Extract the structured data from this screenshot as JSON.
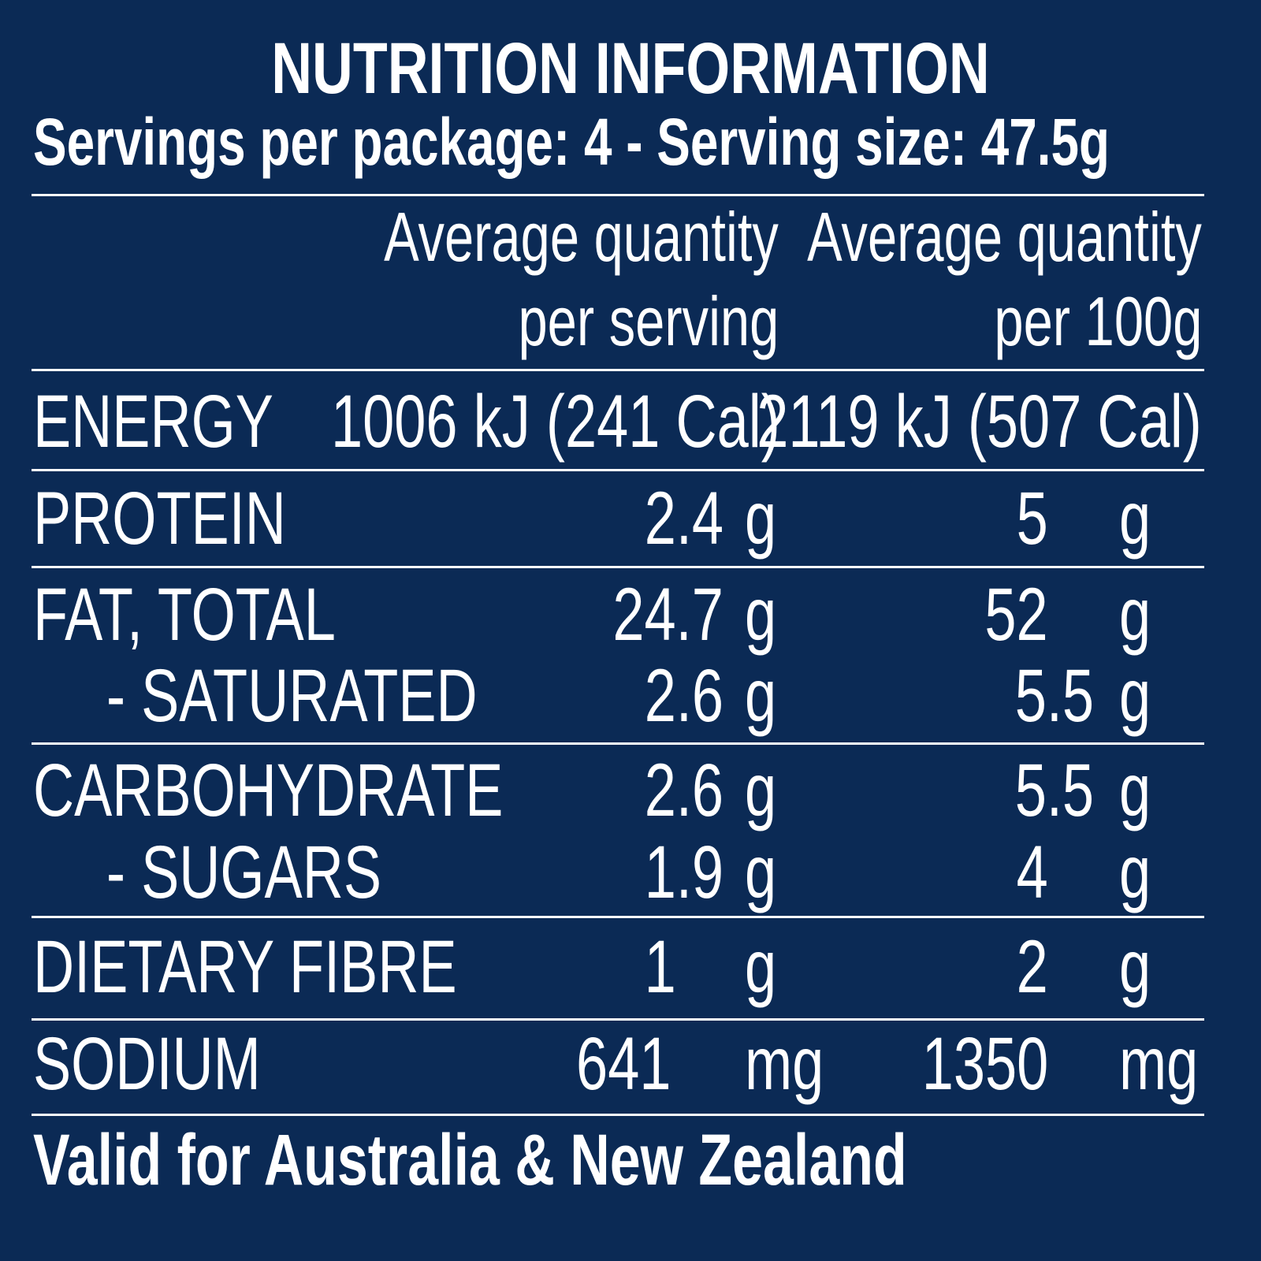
{
  "title": "NUTRITION INFORMATION",
  "subtitle": "Servings per package: 4 - Serving size: 47.5g",
  "columns": {
    "per_serving_line1": "Average quantity",
    "per_serving_line2": "per serving",
    "per_100g_line1": "Average quantity",
    "per_100g_line2": "per 100g"
  },
  "rows": {
    "energy": {
      "label": "ENERGY",
      "serving": "1006 kJ (241 Cal)",
      "per100": "2119 kJ (507 Cal)"
    },
    "protein": {
      "label": "PROTEIN",
      "serving": "2.4",
      "serving_unit": "g",
      "per100": "5",
      "per100_unit": "g"
    },
    "fat": {
      "label": "FAT, TOTAL",
      "serving": "24.7",
      "serving_unit": "g",
      "per100": "52",
      "per100_unit": "g"
    },
    "saturated": {
      "label": "- SATURATED",
      "serving": "2.6",
      "serving_unit": "g",
      "per100": "5.5",
      "per100_unit": "g"
    },
    "carbohydrate": {
      "label": "CARBOHYDRATE",
      "serving": "2.6",
      "serving_unit": "g",
      "per100": "5.5",
      "per100_unit": "g"
    },
    "sugars": {
      "label": "- SUGARS",
      "serving": "1.9",
      "serving_unit": "g",
      "per100": "4",
      "per100_unit": "g"
    },
    "fibre": {
      "label": "DIETARY FIBRE",
      "serving": "1",
      "serving_unit": "g",
      "per100": "2",
      "per100_unit": "g"
    },
    "sodium": {
      "label": "SODIUM",
      "serving": "641",
      "serving_unit": "mg",
      "per100": "1350",
      "per100_unit": "mg"
    }
  },
  "footer": "Valid for Australia & New Zealand",
  "colors": {
    "background": "#0b2a55",
    "text": "#ffffff"
  }
}
